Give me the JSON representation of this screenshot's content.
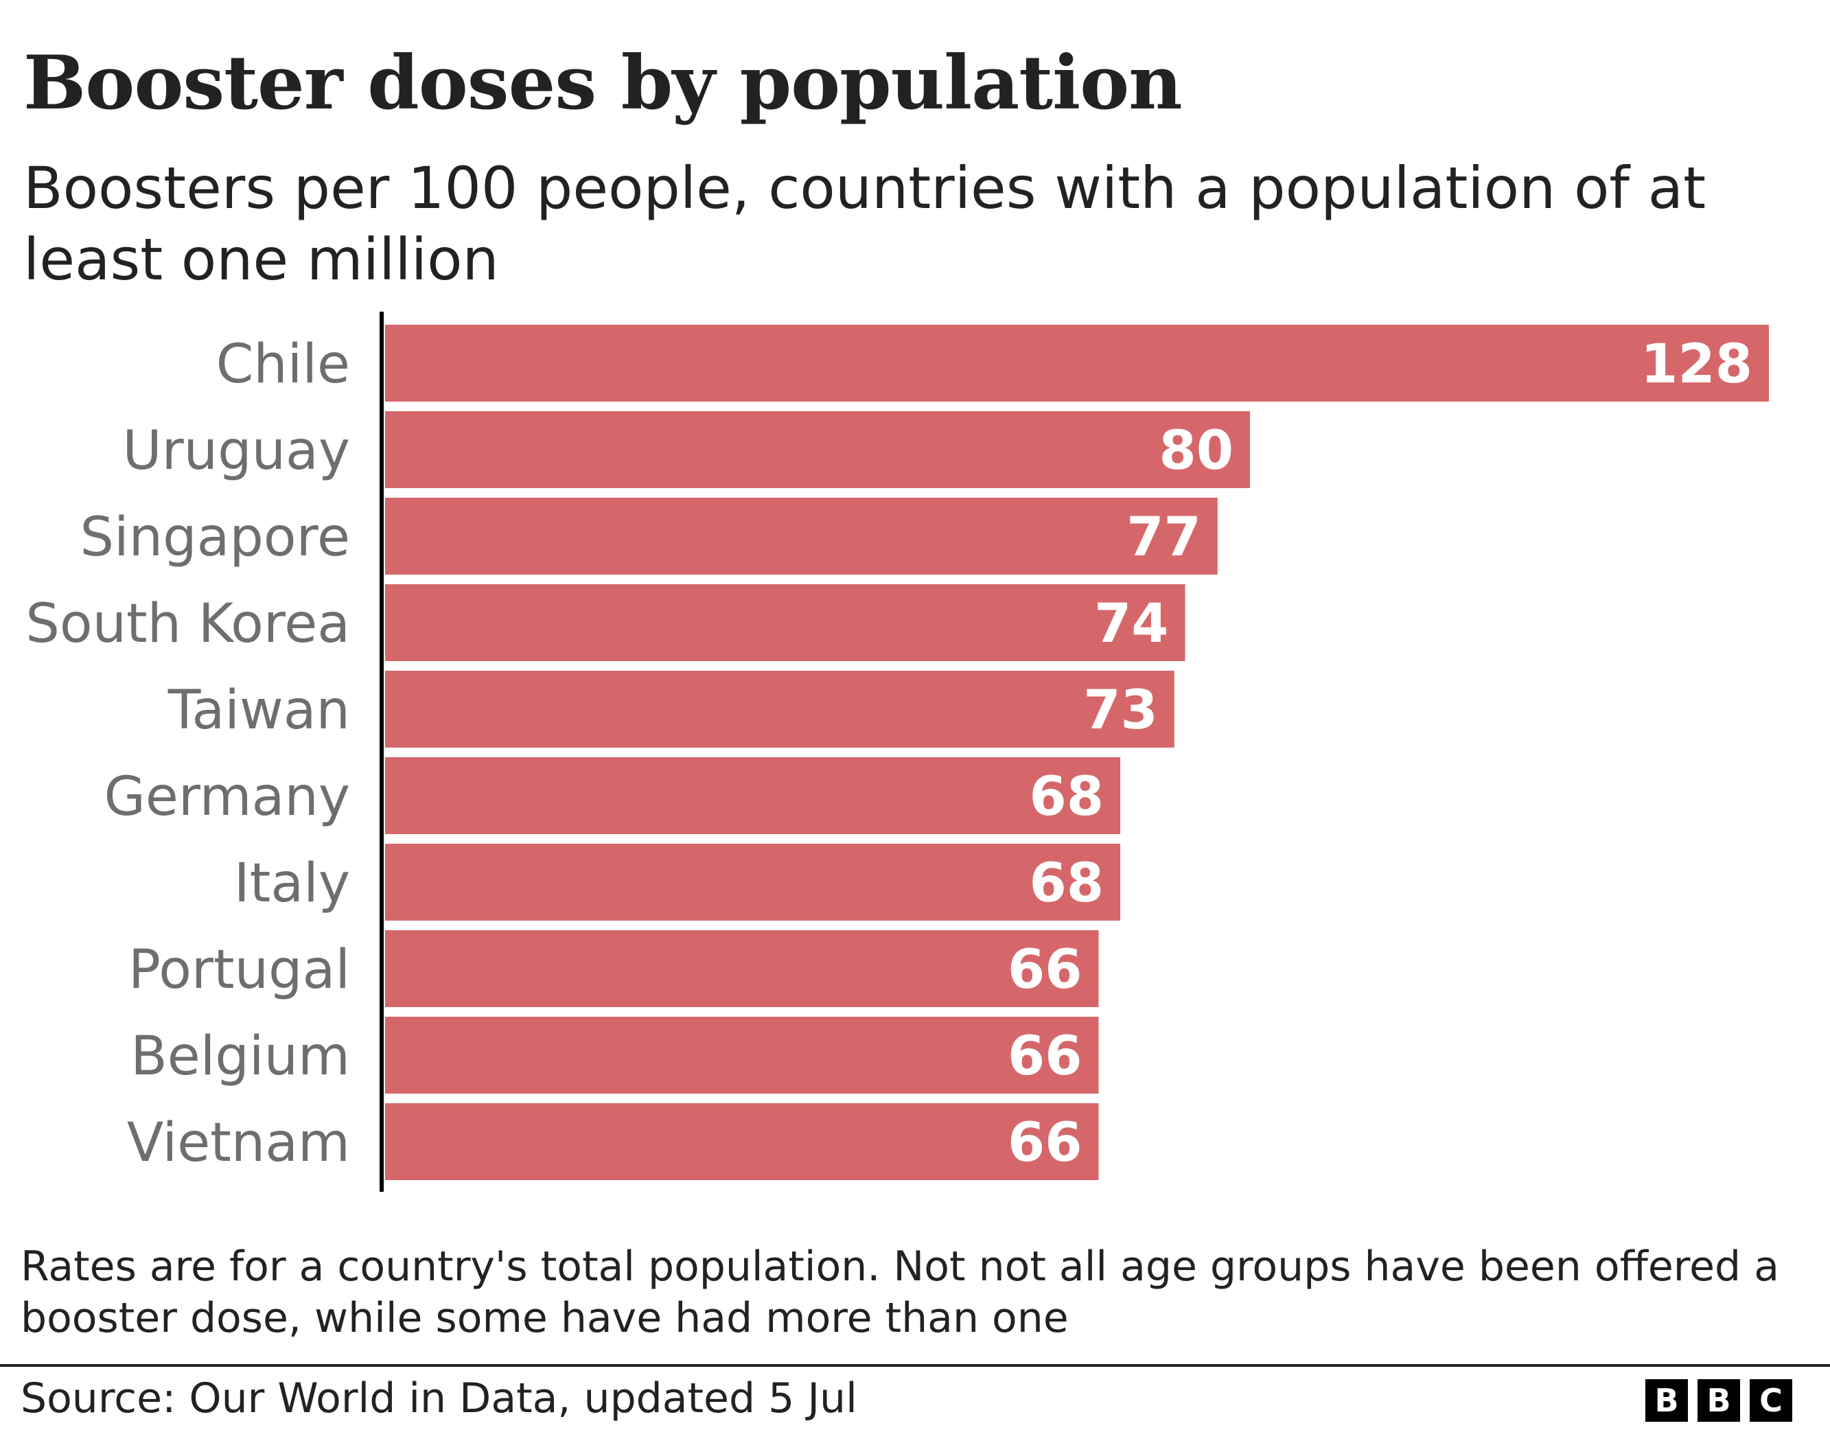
{
  "chart_data": {
    "type": "bar",
    "orientation": "horizontal",
    "title": "Booster doses by population",
    "subtitle": "Boosters per 100 people, countries with a population of at least one million",
    "categories": [
      "Chile",
      "Uruguay",
      "Singapore",
      "South Korea",
      "Taiwan",
      "Germany",
      "Italy",
      "Portugal",
      "Belgium",
      "Vietnam"
    ],
    "values": [
      128,
      80,
      77,
      74,
      73,
      68,
      68,
      66,
      66,
      66
    ],
    "xlim": [
      0,
      128
    ],
    "grid": false,
    "bar_color": "#d5676a",
    "data_labels": true
  },
  "note": "Rates are for a country's total population. Not not all age groups have been offered a booster dose, while some have had more than one",
  "source": "Source: Our World in Data, updated 5 Jul",
  "logo": [
    "B",
    "B",
    "C"
  ]
}
